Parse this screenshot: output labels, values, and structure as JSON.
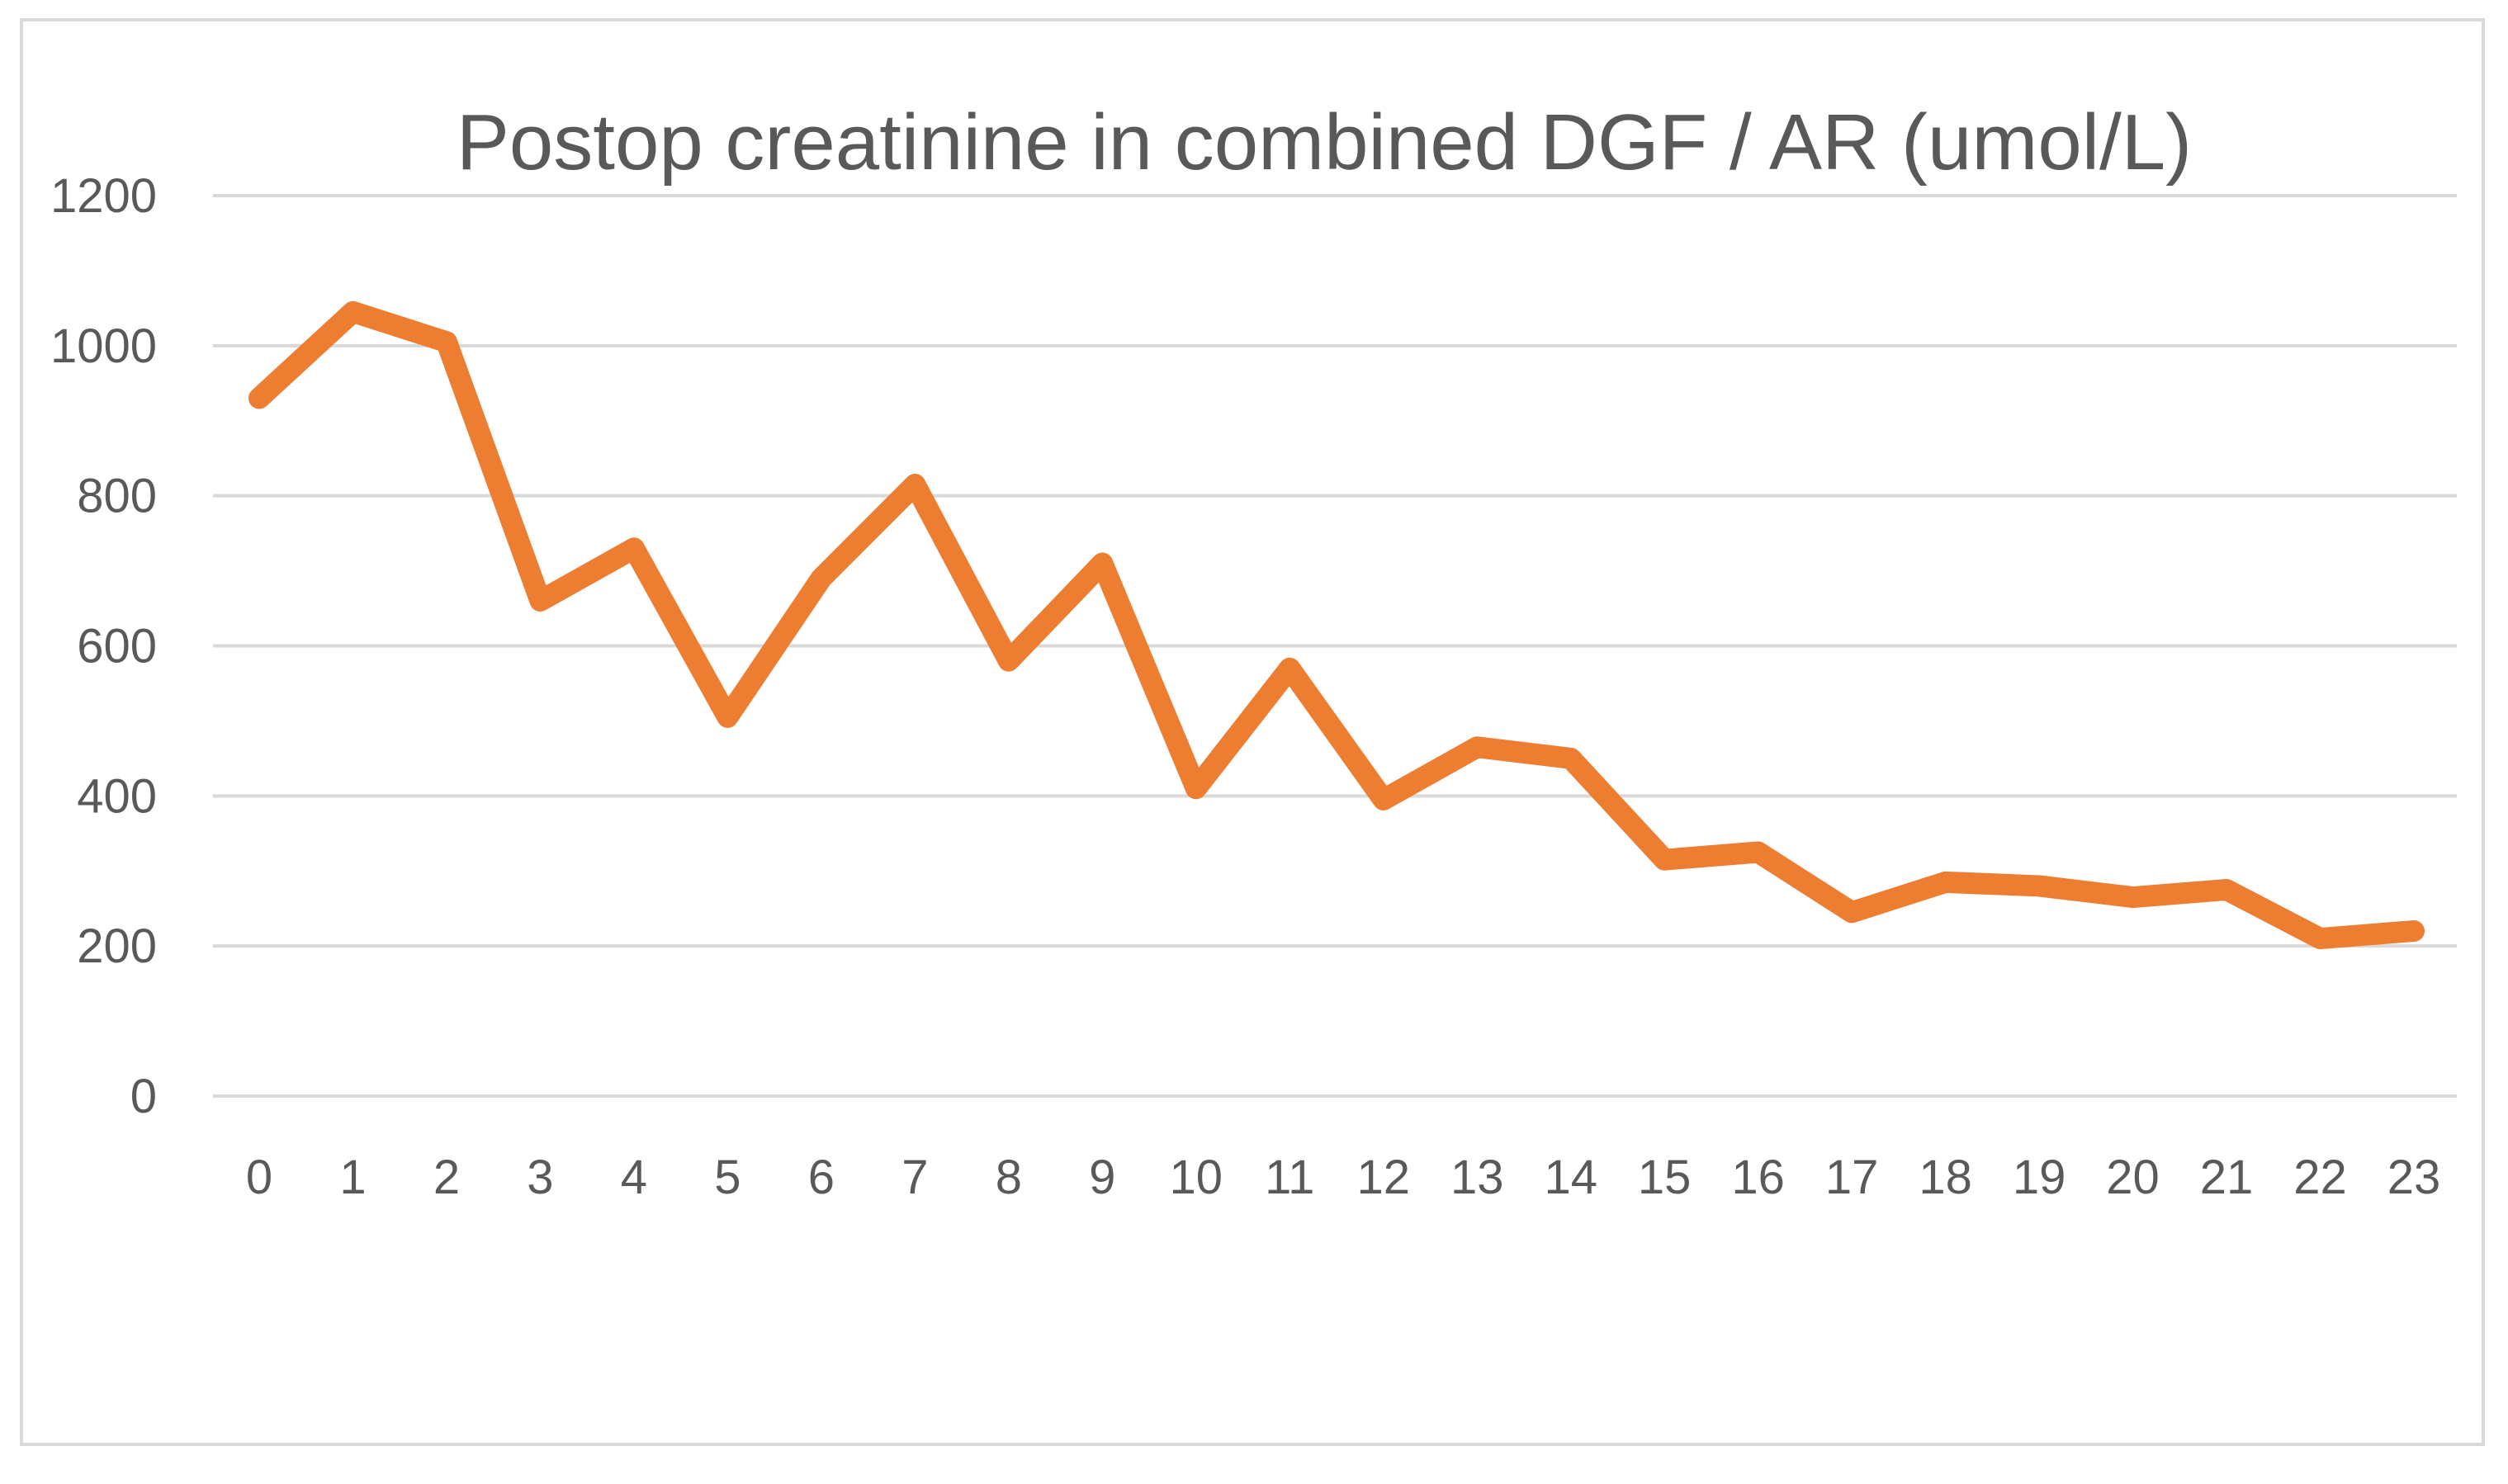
{
  "chart_data": {
    "type": "line",
    "title": "Postop creatinine in combined DGF / AR (umol/L)",
    "xlabel": "",
    "ylabel": "",
    "categories": [
      "0",
      "1",
      "2",
      "3",
      "4",
      "5",
      "6",
      "7",
      "8",
      "9",
      "10",
      "11",
      "12",
      "13",
      "14",
      "15",
      "16",
      "17",
      "18",
      "19",
      "20",
      "21",
      "22",
      "23"
    ],
    "y_ticks": [
      "0",
      "200",
      "400",
      "600",
      "800",
      "1000",
      "1200"
    ],
    "ylim": [
      0,
      1200
    ],
    "grid": true,
    "legend": "none",
    "series": [
      {
        "values": [
          930,
          1045,
          1005,
          660,
          730,
          505,
          690,
          815,
          580,
          710,
          410,
          570,
          395,
          465,
          450,
          315,
          325,
          245,
          285,
          280,
          265,
          275,
          210,
          220
        ],
        "color": "#ed7d31"
      }
    ],
    "colors": {
      "grid": "#d9d9d9",
      "text": "#595959",
      "line": "#ed7d31",
      "border": "#d9d9d9"
    }
  }
}
